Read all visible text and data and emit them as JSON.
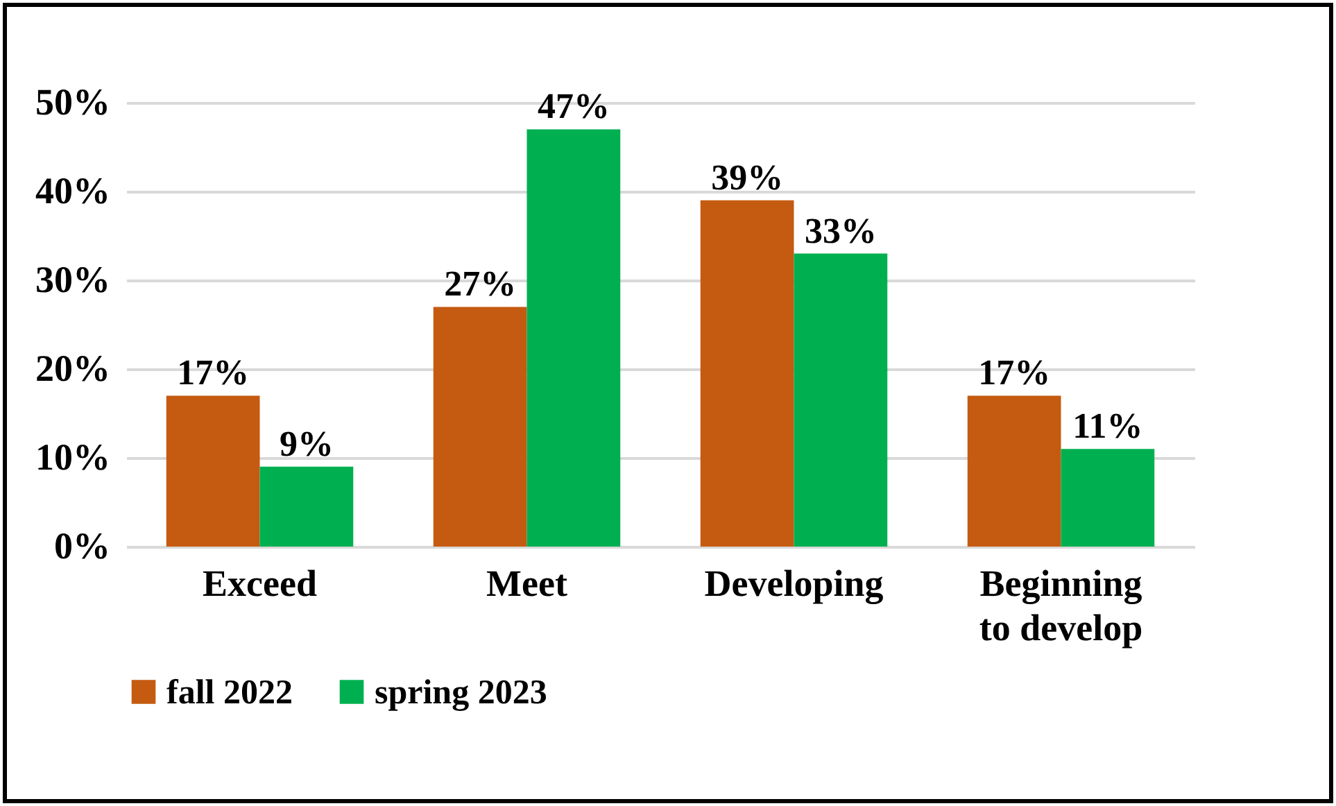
{
  "chart_data": {
    "type": "bar",
    "categories": [
      "Exceed",
      "Meet",
      "Developing",
      "Beginning to develop"
    ],
    "series": [
      {
        "name": "fall 2022",
        "color": "#c55a11",
        "values": [
          17,
          27,
          39,
          17
        ],
        "value_labels": [
          "17%",
          "27%",
          "39%",
          "17%"
        ]
      },
      {
        "name": "spring 2023",
        "color": "#00b050",
        "values": [
          9,
          47,
          33,
          11
        ],
        "value_labels": [
          "9%",
          "47%",
          "33%",
          "11%"
        ]
      }
    ],
    "ylim": [
      0,
      50
    ],
    "yticks": [
      {
        "value": 0,
        "label": "0%"
      },
      {
        "value": 10,
        "label": "10%"
      },
      {
        "value": 20,
        "label": "20%"
      },
      {
        "value": 30,
        "label": "30%"
      },
      {
        "value": 40,
        "label": "40%"
      },
      {
        "value": 50,
        "label": "50%"
      }
    ],
    "grid": "y",
    "legend": "bottom"
  }
}
